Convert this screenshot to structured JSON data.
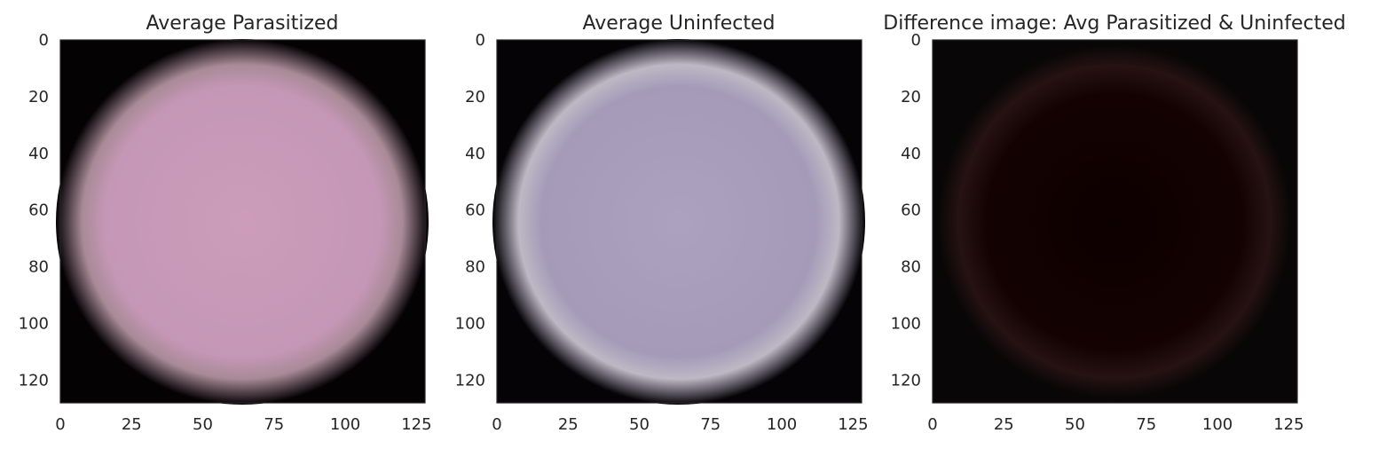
{
  "chart_data": [
    {
      "type": "image",
      "title": "Average Parasitized",
      "xlabel": "",
      "ylabel": "",
      "xlim": [
        0,
        128
      ],
      "ylim": [
        128,
        0
      ],
      "xticks": [
        0,
        25,
        50,
        75,
        100,
        125
      ],
      "yticks": [
        0,
        20,
        40,
        60,
        80,
        100,
        120
      ],
      "grid": false,
      "colors": {
        "background": "#050203",
        "cell": "#c597b6",
        "cell_center": "#cc9dba"
      }
    },
    {
      "type": "image",
      "title": "Average Uninfected",
      "xlabel": "",
      "ylabel": "",
      "xlim": [
        0,
        128
      ],
      "ylim": [
        128,
        0
      ],
      "xticks": [
        0,
        25,
        50,
        75,
        100,
        125
      ],
      "yticks": [
        0,
        20,
        40,
        60,
        80,
        100,
        120
      ],
      "grid": false,
      "colors": {
        "background": "#050305",
        "cell": "#a59bb9",
        "cell_center": "#aca2bf"
      }
    },
    {
      "type": "image",
      "title": "Difference image: Avg Parasitized & Uninfected",
      "xlabel": "",
      "ylabel": "",
      "xlim": [
        0,
        128
      ],
      "ylim": [
        128,
        0
      ],
      "xticks": [
        0,
        25,
        50,
        75,
        100,
        125
      ],
      "yticks": [
        0,
        20,
        40,
        60,
        80,
        100,
        120
      ],
      "grid": false,
      "colors": {
        "background": "#080606",
        "cell": "#140202",
        "cell_center": "#0d0000"
      }
    }
  ]
}
